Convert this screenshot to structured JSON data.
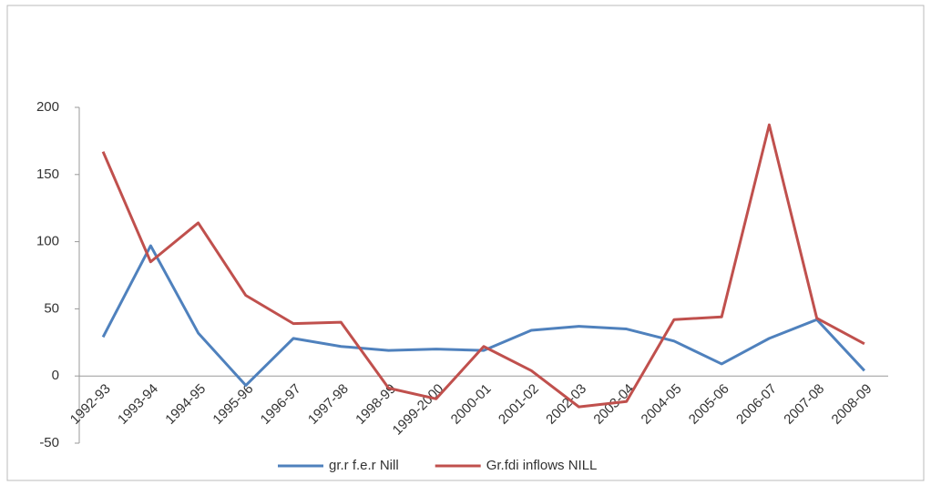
{
  "chart_data": {
    "type": "line",
    "categories": [
      "1992-93",
      "1993-94",
      "1994-95",
      "1995-96",
      "1996-97",
      "1997-98",
      "1998-99",
      "1999-2000",
      "2000-01",
      "2001-02",
      "2002-03",
      "2003-04",
      "2004-05",
      "2005-06",
      "2006-07",
      "2007-08",
      "2008-09"
    ],
    "series": [
      {
        "name": "gr.r f.e.r Nill",
        "color": "#4f81bd",
        "values": [
          29,
          97,
          32,
          -7,
          28,
          22,
          19,
          20,
          19,
          34,
          37,
          35,
          26,
          9,
          28,
          42,
          4
        ]
      },
      {
        "name": "Gr.fdi inflows NILL",
        "color": "#c0504d",
        "values": [
          167,
          85,
          114,
          60,
          39,
          40,
          -9,
          -17,
          22,
          4,
          -23,
          -19,
          42,
          44,
          187,
          43,
          24
        ]
      }
    ],
    "ylim": [
      -50,
      200
    ],
    "yticks": [
      -50,
      0,
      50,
      100,
      150,
      200
    ],
    "grid": false,
    "legend": "bottom"
  }
}
